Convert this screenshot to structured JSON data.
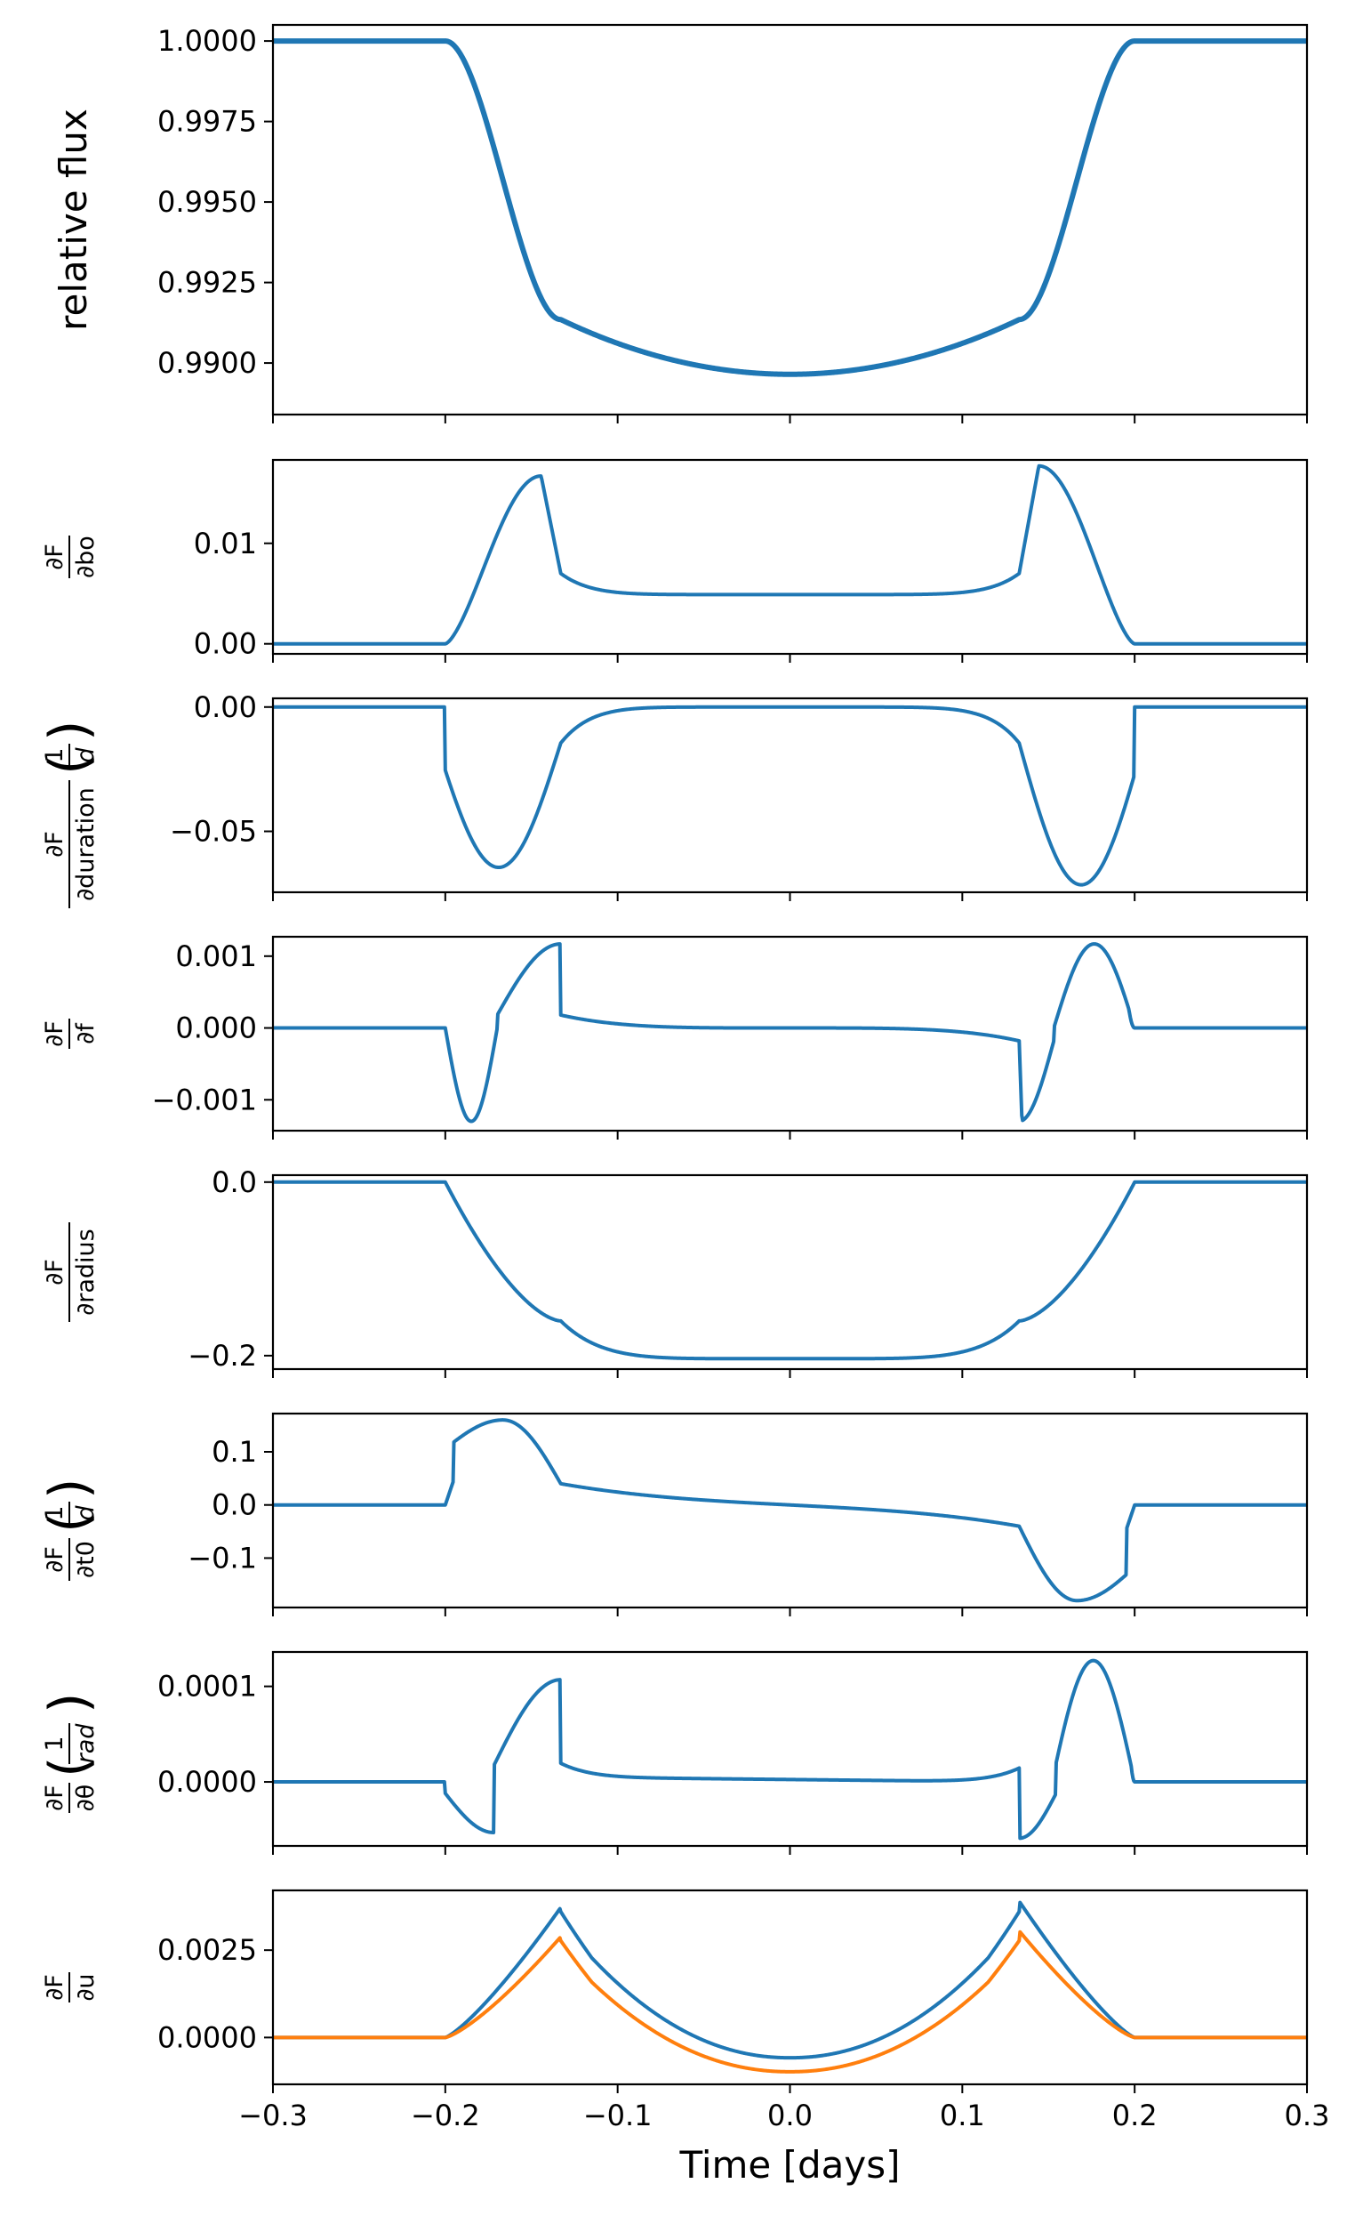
{
  "chart_data": [
    {
      "type": "line",
      "ylabel": "relative flux",
      "ylim": [
        0.9884,
        1.0005
      ],
      "yticks": [
        {
          "v": 1.0,
          "label": "1.0000"
        },
        {
          "v": 0.9975,
          "label": "0.9975"
        },
        {
          "v": 0.995,
          "label": "0.9950"
        },
        {
          "v": 0.9925,
          "label": "0.9925"
        },
        {
          "v": 0.99,
          "label": "0.9900"
        }
      ],
      "series": [
        {
          "color": "#1f77b4",
          "kind": "flux",
          "thick": true
        }
      ]
    },
    {
      "type": "line",
      "ylabel": {
        "num": "∂F",
        "den": "∂bo"
      },
      "ylim": [
        -0.001,
        0.0183
      ],
      "yticks": [
        {
          "v": 0.01,
          "label": "0.01"
        },
        {
          "v": 0.0,
          "label": "0.00"
        }
      ],
      "series": [
        {
          "color": "#1f77b4",
          "kind": "dbo"
        }
      ]
    },
    {
      "type": "line",
      "ylabel": {
        "num": "∂F",
        "den": "∂duration",
        "unit": "d"
      },
      "ylim": [
        -0.0745,
        0.0035
      ],
      "yticks": [
        {
          "v": 0.0,
          "label": "0.00"
        },
        {
          "v": -0.05,
          "label": "−0.05"
        }
      ],
      "series": [
        {
          "color": "#1f77b4",
          "kind": "ddur"
        }
      ]
    },
    {
      "type": "line",
      "ylabel": {
        "num": "∂F",
        "den": "∂f"
      },
      "ylim": [
        -0.00143,
        0.00127
      ],
      "yticks": [
        {
          "v": 0.001,
          "label": "0.001"
        },
        {
          "v": 0.0,
          "label": "0.000"
        },
        {
          "v": -0.001,
          "label": "−0.001"
        }
      ],
      "series": [
        {
          "color": "#1f77b4",
          "kind": "df"
        }
      ]
    },
    {
      "type": "line",
      "ylabel": {
        "num": "∂F",
        "den": "∂radius"
      },
      "ylim": [
        -0.2155,
        0.008
      ],
      "yticks": [
        {
          "v": 0.0,
          "label": "0.0"
        },
        {
          "v": -0.2,
          "label": "−0.2"
        }
      ],
      "series": [
        {
          "color": "#1f77b4",
          "kind": "drad"
        }
      ]
    },
    {
      "type": "line",
      "ylabel": {
        "num": "∂F",
        "den": "∂t0",
        "unit": "d"
      },
      "ylim": [
        -0.193,
        0.172
      ],
      "yticks": [
        {
          "v": 0.1,
          "label": "0.1"
        },
        {
          "v": 0.0,
          "label": "0.0"
        },
        {
          "v": -0.1,
          "label": "−0.1"
        }
      ],
      "series": [
        {
          "color": "#1f77b4",
          "kind": "dt0"
        }
      ]
    },
    {
      "type": "line",
      "ylabel": {
        "num": "∂F",
        "den": "∂θ",
        "unit": "rad"
      },
      "ylim": [
        -6.7e-05,
        0.000136
      ],
      "yticks": [
        {
          "v": 0.0001,
          "label": "0.0001"
        },
        {
          "v": 0.0,
          "label": "0.0000"
        }
      ],
      "series": [
        {
          "color": "#1f77b4",
          "kind": "dth"
        }
      ]
    },
    {
      "type": "line",
      "ylabel": {
        "num": "∂F",
        "den": "∂u"
      },
      "ylim": [
        -0.00134,
        0.00421
      ],
      "yticks": [
        {
          "v": 0.0025,
          "label": "0.0025"
        },
        {
          "v": 0.0,
          "label": "0.0000"
        }
      ],
      "xlabel": "Time [days]",
      "series": [
        {
          "color": "#1f77b4",
          "kind": "du1"
        },
        {
          "color": "#ff7f0e",
          "kind": "du2"
        }
      ]
    }
  ],
  "x_axis": {
    "xlim": [
      -0.3,
      0.3
    ],
    "ticks": [
      {
        "v": -0.3,
        "label": "−0.3"
      },
      {
        "v": -0.2,
        "label": "−0.2"
      },
      {
        "v": -0.1,
        "label": "−0.1"
      },
      {
        "v": 0.0,
        "label": "0.0"
      },
      {
        "v": 0.1,
        "label": "0.1"
      },
      {
        "v": 0.2,
        "label": "0.2"
      },
      {
        "v": 0.3,
        "label": "0.3"
      }
    ],
    "label": "Time [days]",
    "transit": {
      "t1": -0.2,
      "t2": -0.133,
      "t3": 0.133,
      "t4": 0.2
    }
  }
}
